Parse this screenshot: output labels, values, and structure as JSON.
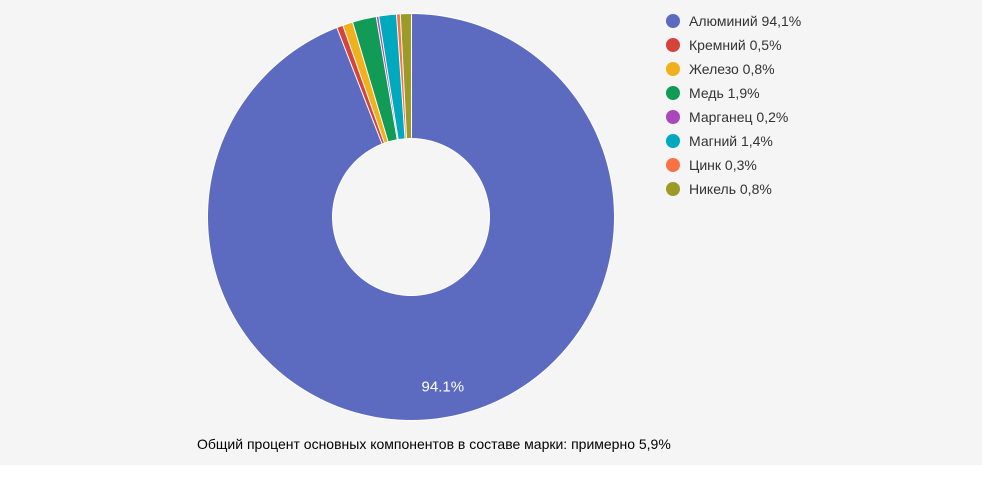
{
  "chart_data": {
    "type": "pie",
    "subtype": "donut",
    "hole_ratio": 0.39,
    "start_angle_deg": 0,
    "direction": "clockwise",
    "legend_position": "right",
    "background": "#f5f5f5",
    "slices": [
      {
        "label": "Алюминий",
        "value": 94.1,
        "display": "94,1%",
        "color": "#5c6bc0",
        "slice_text": "94.1%"
      },
      {
        "label": "Кремний",
        "value": 0.5,
        "display": "0,5%",
        "color": "#d5433b"
      },
      {
        "label": "Железо",
        "value": 0.8,
        "display": "0,8%",
        "color": "#f0b11c"
      },
      {
        "label": "Медь",
        "value": 1.9,
        "display": "1,9%",
        "color": "#129b57"
      },
      {
        "label": "Марганец",
        "value": 0.2,
        "display": "0,2%",
        "color": "#ab47bc"
      },
      {
        "label": "Магний",
        "value": 1.4,
        "display": "1,4%",
        "color": "#00a9bd"
      },
      {
        "label": "Цинк",
        "value": 0.3,
        "display": "0,3%",
        "color": "#fb7146"
      },
      {
        "label": "Никель",
        "value": 0.8,
        "display": "0,8%",
        "color": "#9c9b27"
      }
    ],
    "caption": "Общий процент основных компонентов в составе марки: примерно 5,9%"
  }
}
